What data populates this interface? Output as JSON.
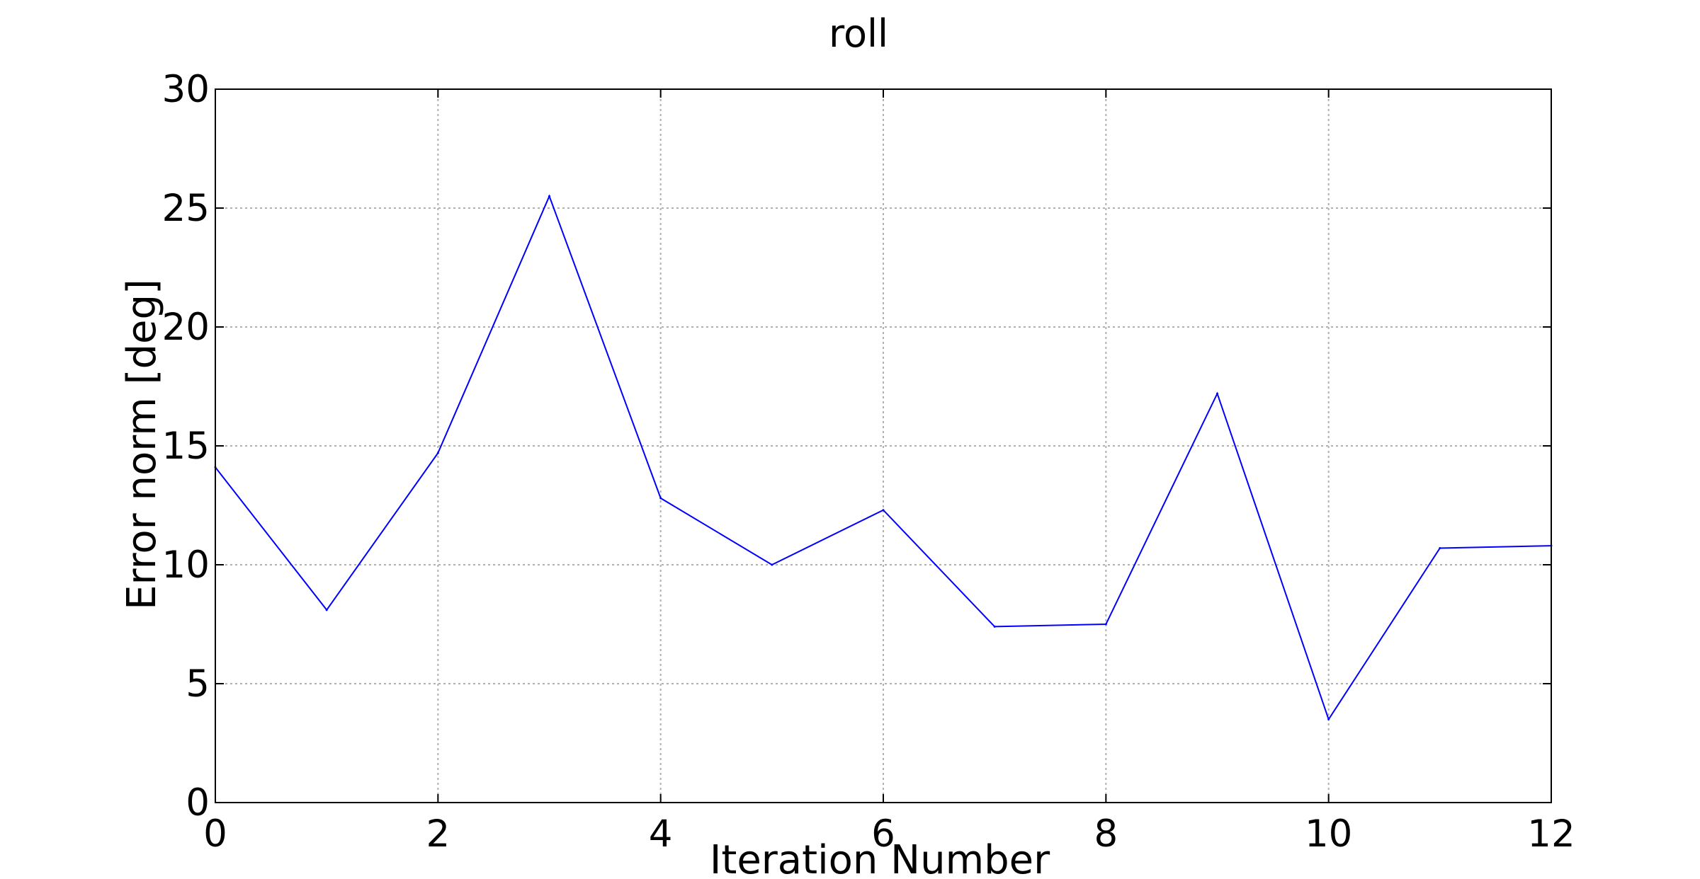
{
  "chart_data": {
    "type": "line",
    "title": "roll",
    "xlabel": "Iteration Number",
    "ylabel": "Error norm [deg]",
    "xlim": [
      0,
      12
    ],
    "ylim": [
      0,
      30
    ],
    "xticks": [
      0,
      2,
      4,
      6,
      8,
      10,
      12
    ],
    "yticks": [
      0,
      5,
      10,
      15,
      20,
      25,
      30
    ],
    "grid": true,
    "series": [
      {
        "color": "#0000ff",
        "x": [
          0,
          1,
          2,
          3,
          4,
          5,
          6,
          7,
          8,
          9,
          10,
          11,
          12
        ],
        "values": [
          14.1,
          8.1,
          14.7,
          25.5,
          12.8,
          10.0,
          12.3,
          7.4,
          7.5,
          17.2,
          3.5,
          10.7,
          10.8
        ]
      }
    ]
  }
}
